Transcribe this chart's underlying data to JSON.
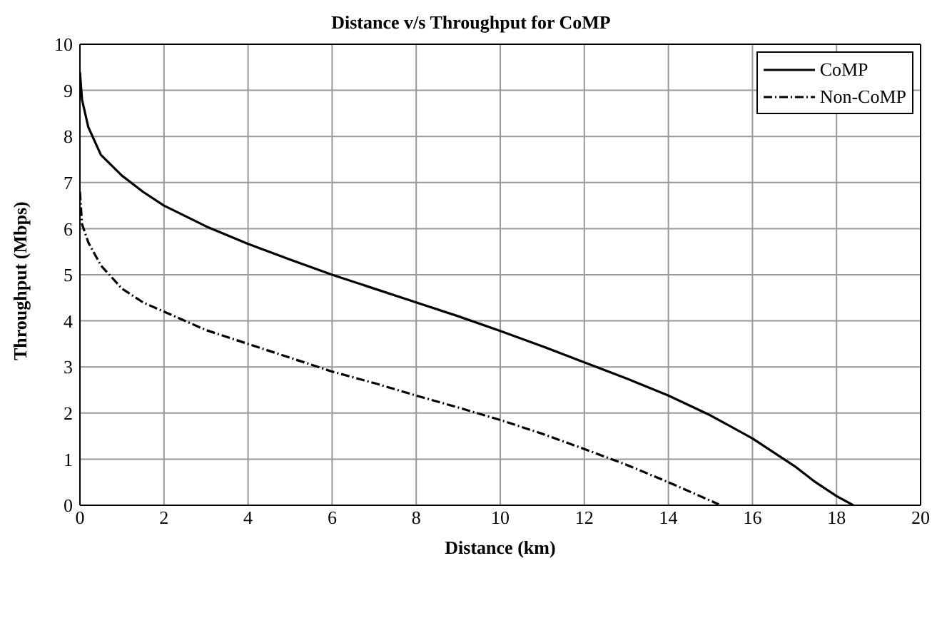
{
  "chart_data": {
    "type": "line",
    "title": "Distance v/s Throughput for CoMP",
    "xlabel": "Distance (km)",
    "ylabel": "Throughput (Mbps)",
    "xlim": [
      0,
      20
    ],
    "xticks": [
      0,
      2,
      4,
      6,
      8,
      10,
      12,
      14,
      16,
      18,
      20
    ],
    "ylim": [
      0,
      10
    ],
    "yticks": [
      0,
      1,
      2,
      3,
      4,
      5,
      6,
      7,
      8,
      9,
      10
    ],
    "grid": true,
    "legend": "top right",
    "marker": "none",
    "series": [
      {
        "name": "CoMP",
        "color": "#000000",
        "line_style": "solid",
        "x": [
          0,
          0.05,
          0.2,
          0.5,
          1,
          1.5,
          2,
          3,
          4,
          5,
          6,
          7,
          8,
          9,
          10,
          11,
          12,
          13,
          14,
          15,
          16,
          17,
          17.5,
          18,
          18.4
        ],
        "values": [
          9.4,
          8.8,
          8.2,
          7.6,
          7.15,
          6.8,
          6.5,
          6.05,
          5.67,
          5.33,
          5.0,
          4.7,
          4.4,
          4.1,
          3.78,
          3.45,
          3.1,
          2.75,
          2.38,
          1.95,
          1.45,
          0.85,
          0.5,
          0.2,
          0.0
        ]
      },
      {
        "name": "Non-CoMP",
        "color": "#000000",
        "line_style": "dashdot",
        "x": [
          0,
          0.05,
          0.2,
          0.5,
          1,
          1.5,
          2,
          3,
          4,
          5,
          6,
          7,
          8,
          9,
          10,
          11,
          12,
          13,
          14,
          15,
          15.2
        ],
        "values": [
          6.8,
          6.1,
          5.7,
          5.2,
          4.7,
          4.4,
          4.2,
          3.8,
          3.5,
          3.2,
          2.9,
          2.65,
          2.38,
          2.12,
          1.85,
          1.55,
          1.22,
          0.88,
          0.5,
          0.1,
          0.02
        ]
      }
    ]
  }
}
